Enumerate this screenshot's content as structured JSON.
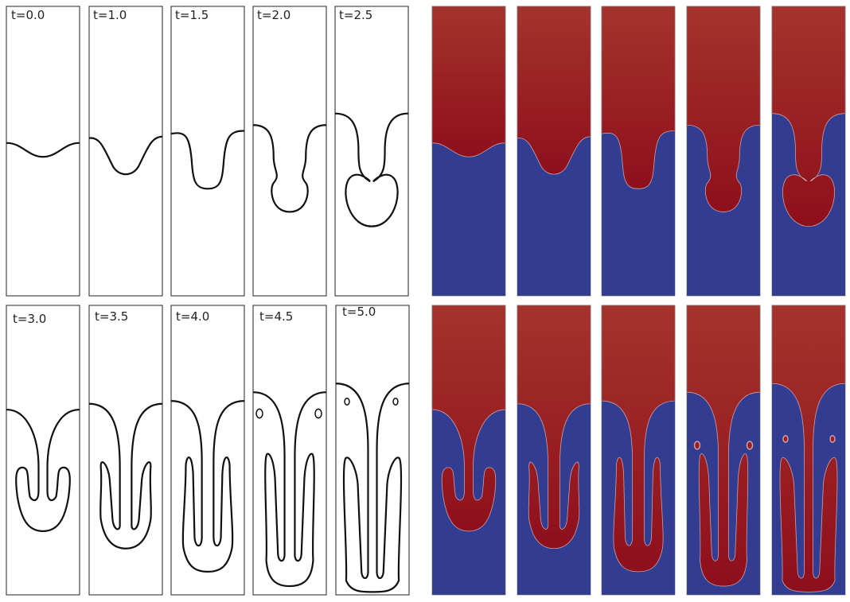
{
  "panels_top": [
    {
      "t": "t=0.0",
      "depth": 0.0,
      "phase": 0
    },
    {
      "t": "t=1.0",
      "depth": 0.0,
      "phase": 1
    },
    {
      "t": "t=1.5",
      "depth": 0.0,
      "phase": 2
    },
    {
      "t": "t=2.0",
      "depth": 0.0,
      "phase": 3
    },
    {
      "t": "t=2.5",
      "depth": 0.0,
      "phase": 4
    }
  ],
  "panels_bottom": [
    {
      "t": "t=3.0",
      "phase": 5
    },
    {
      "t": "t=3.5",
      "phase": 6
    },
    {
      "t": "t=4.0",
      "phase": 7
    },
    {
      "t": "t=4.5",
      "phase": 8
    },
    {
      "t": "t=5.0",
      "phase": 9
    }
  ],
  "colors": {
    "heavy_fluid": "#9b1c22",
    "heavy_fluid_top": "#a3302c",
    "light_fluid": "#323c90",
    "interface_line": "#111111",
    "frame": "#222222",
    "interface_on_color": "#c9a0a6"
  }
}
